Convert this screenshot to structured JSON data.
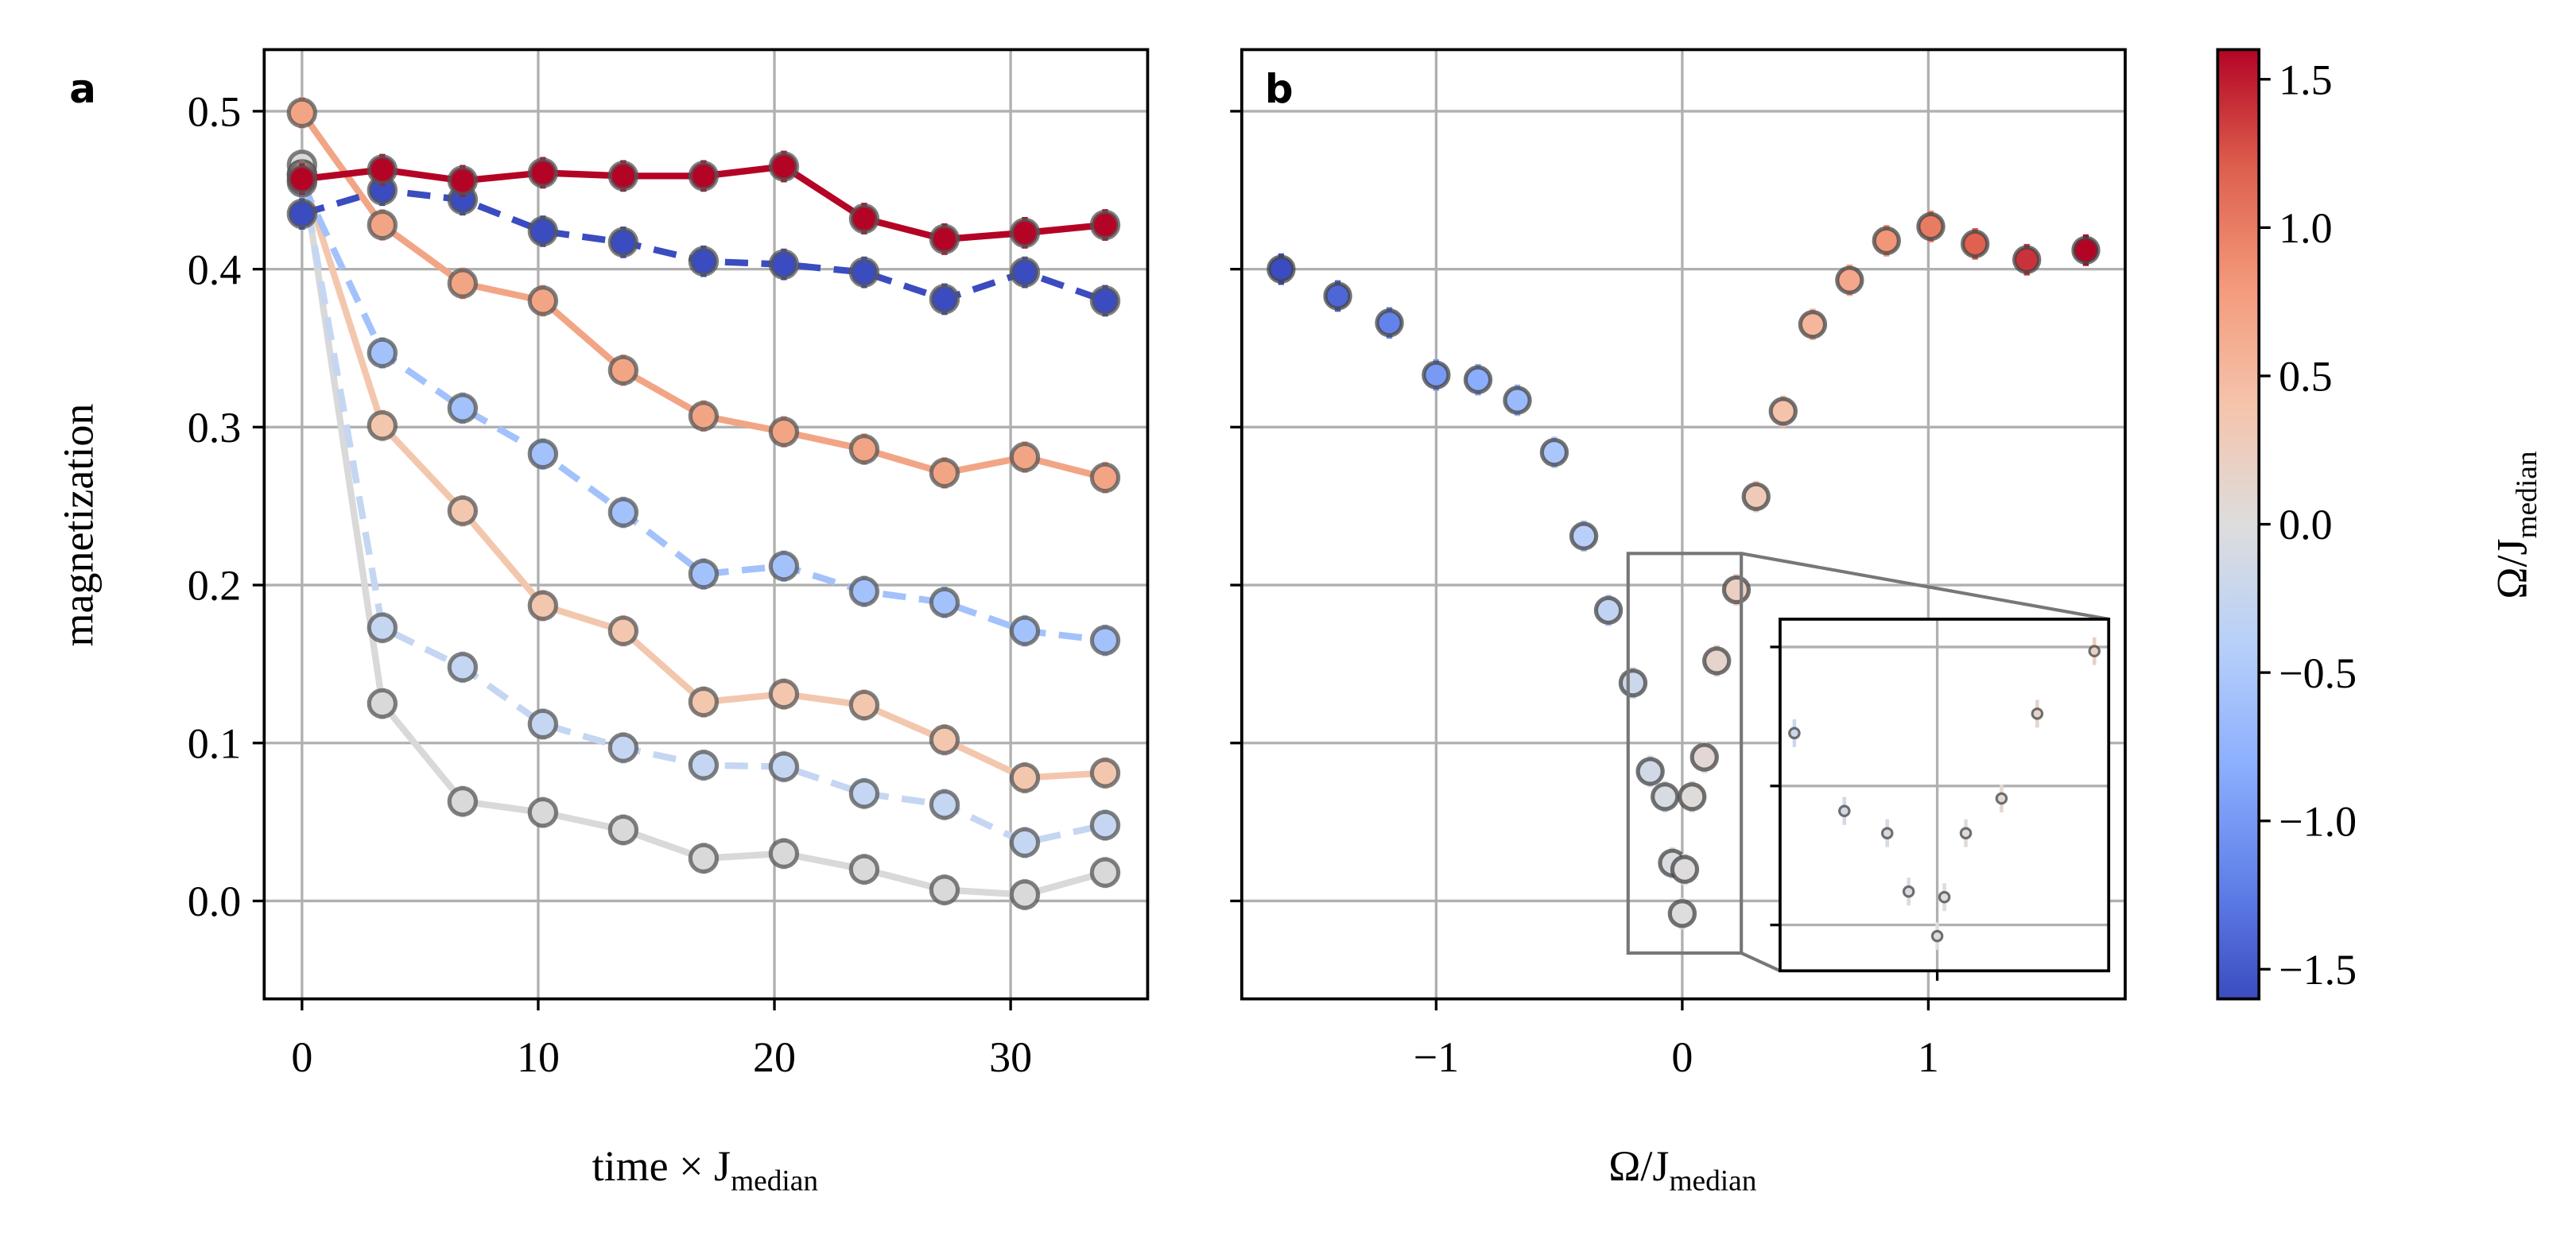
{
  "chart_data": [
    {
      "type": "line",
      "panel_label": "a",
      "x": [
        0,
        3.4,
        6.8,
        10.2,
        13.6,
        17,
        20.4,
        23.8,
        27.2,
        30.6,
        34
      ],
      "xlabel": {
        "text": "time  × J",
        "sub": "median"
      },
      "ylabel": "magnetization",
      "xlim": [
        -1.6,
        35.8
      ],
      "ylim": [
        -0.062,
        0.539
      ],
      "xticks": [
        0,
        10,
        20,
        30
      ],
      "yticks": [
        {
          "value": 0,
          "label": "0.0"
        },
        0.1,
        0.2,
        0.3,
        0.4,
        0.5
      ],
      "grid": true,
      "yerr": 0.01,
      "series": [
        {
          "color": "#d9d9d9",
          "linestyle": "solid",
          "values": [
            0.466,
            0.125,
            0.063,
            0.056,
            0.045,
            0.027,
            0.03,
            0.02,
            0.007,
            0.004,
            0.018
          ]
        },
        {
          "color": "#c5d6f2",
          "linestyle": "dashed",
          "values": [
            0.46,
            0.173,
            0.148,
            0.112,
            0.097,
            0.086,
            0.085,
            0.068,
            0.061,
            0.037,
            0.048
          ]
        },
        {
          "color": "#f3c7ae",
          "linestyle": "solid",
          "values": [
            0.46,
            0.301,
            0.247,
            0.187,
            0.171,
            0.126,
            0.131,
            0.124,
            0.102,
            0.078,
            0.081
          ]
        },
        {
          "color": "#a3c2fb",
          "linestyle": "dashed",
          "values": [
            0.455,
            0.347,
            0.312,
            0.283,
            0.246,
            0.207,
            0.212,
            0.196,
            0.189,
            0.171,
            0.165
          ]
        },
        {
          "color": "#f2a585",
          "linestyle": "solid",
          "values": [
            0.499,
            0.428,
            0.391,
            0.38,
            0.336,
            0.307,
            0.297,
            0.286,
            0.271,
            0.281,
            0.268
          ]
        },
        {
          "color": "#3b4cc0",
          "linestyle": "dashed",
          "values": [
            0.435,
            0.45,
            0.444,
            0.424,
            0.417,
            0.405,
            0.403,
            0.398,
            0.381,
            0.398,
            0.38
          ]
        },
        {
          "color": "#b40426",
          "linestyle": "solid",
          "values": [
            0.457,
            0.463,
            0.456,
            0.461,
            0.459,
            0.459,
            0.465,
            0.432,
            0.419,
            0.423,
            0.428
          ]
        }
      ]
    },
    {
      "type": "scatter",
      "panel_label": "b",
      "x": [
        -1.63,
        -1.4,
        -1.19,
        -1.0,
        -0.83,
        -0.67,
        -0.52,
        -0.4,
        -0.3,
        -0.2,
        -0.13,
        -0.07,
        -0.04,
        0,
        0.01,
        0.04,
        0.09,
        0.14,
        0.22,
        0.3,
        0.41,
        0.53,
        0.68,
        0.83,
        1.01,
        1.19,
        1.4,
        1.64
      ],
      "y": [
        0.4,
        0.383,
        0.366,
        0.333,
        0.33,
        0.317,
        0.284,
        0.231,
        0.184,
        0.138,
        0.082,
        0.066,
        0.024,
        -0.008,
        0.02,
        0.066,
        0.091,
        0.152,
        0.197,
        0.256,
        0.31,
        0.365,
        0.393,
        0.418,
        0.427,
        0.416,
        0.406,
        0.412
      ],
      "xlabel": {
        "text": "Ω/J",
        "sub": "median"
      },
      "xlim": [
        -1.79,
        1.8
      ],
      "ylim": [
        -0.062,
        0.539
      ],
      "xticks": [
        {
          "value": -1,
          "label": "−1"
        },
        0,
        1
      ],
      "yticks": [
        0,
        0.1,
        0.2,
        0.3,
        0.4,
        0.5
      ],
      "show_yticklabels": false,
      "grid": true,
      "yerr": 0.01,
      "inset": {
        "xlim": [
          -0.22,
          0.24
        ],
        "ylim": [
          -0.033,
          0.22
        ],
        "xticks": [
          0
        ],
        "yticks": [
          0,
          0.1,
          0.2
        ]
      },
      "colorbar": {
        "label": {
          "text": "Ω/J",
          "sub": "median"
        },
        "clim": [
          -1.6,
          1.6
        ],
        "ticks": [
          {
            "value": -1.5,
            "label": "−1.5"
          },
          {
            "value": -1,
            "label": "−1.0"
          },
          {
            "value": -0.5,
            "label": "−0.5"
          },
          {
            "value": 0,
            "label": "0.0"
          },
          0.5,
          {
            "value": 1,
            "label": "1.0"
          },
          1.5
        ],
        "colormap": [
          "#3b4cc0",
          "#6282ea",
          "#8db0fe",
          "#b8d0f9",
          "#dddddd",
          "#f5c4ac",
          "#f49a7b",
          "#de604d",
          "#b40426"
        ]
      }
    }
  ]
}
